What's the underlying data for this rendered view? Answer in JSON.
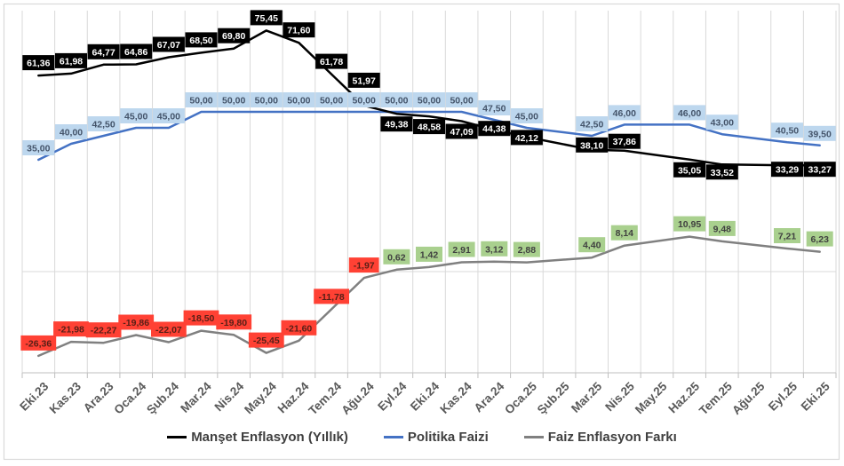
{
  "chart_data": {
    "type": "line",
    "title": "",
    "xlabel": "",
    "ylabel": "",
    "ylim": [
      -32,
      82
    ],
    "grid": {
      "vertical": true,
      "zero_line": true,
      "horizontal": false
    },
    "legend_position": "bottom",
    "decimal_separator": ",",
    "categories": [
      "Eki.23",
      "Kas.23",
      "Ara.23",
      "Oca.24",
      "Şub.24",
      "Mar.24",
      "Nis.24",
      "May.24",
      "Haz.24",
      "Tem.24",
      "Ağu.24",
      "Eyl.24",
      "Eki.24",
      "Kas.24",
      "Ara.24",
      "Oca.25",
      "Şub.25",
      "Mar.25",
      "Nis.25",
      "May.25",
      "Haz.25",
      "Tem.25",
      "Ağu.25",
      "Eyl.25",
      "Eki.25"
    ],
    "series": [
      {
        "name": "Manşet Enflasyon (Yıllık)",
        "color": "#000000",
        "label_bg": "#000000",
        "label_fg": "#FFFFFF",
        "values": [
          61.36,
          61.98,
          64.77,
          64.86,
          67.07,
          68.5,
          69.8,
          75.45,
          71.6,
          61.78,
          51.97,
          49.38,
          48.58,
          47.09,
          44.38,
          42.12,
          null,
          38.1,
          37.86,
          null,
          35.05,
          33.52,
          null,
          33.29,
          33.27
        ],
        "labels": [
          "61,36",
          "61,98",
          "64,77",
          "64,86",
          "67,07",
          "68,50",
          "69,80",
          "75,45",
          "71,60",
          "61,78",
          "51,97",
          "49,38",
          "48,58",
          "47,09",
          "44,38",
          "42,12",
          null,
          "38,10",
          "37,86",
          null,
          "35,05",
          "33,52",
          null,
          "33,29",
          "33,27"
        ]
      },
      {
        "name": "Politika Faizi",
        "color": "#4472C4",
        "label_bg": "#BDD7EE",
        "label_fg": "#44546A",
        "values": [
          35.0,
          40.0,
          42.5,
          45.0,
          45.0,
          50.0,
          50.0,
          50.0,
          50.0,
          50.0,
          50.0,
          50.0,
          50.0,
          50.0,
          47.5,
          45.0,
          null,
          42.5,
          46.0,
          null,
          46.0,
          43.0,
          null,
          40.5,
          39.5
        ],
        "labels": [
          "35,00",
          "40,00",
          "42,50",
          "45,00",
          "45,00",
          "50,00",
          "50,00",
          "50,00",
          "50,00",
          "50,00",
          "50,00",
          "50,00",
          "50,00",
          "50,00",
          "47,50",
          "45,00",
          null,
          "42,50",
          "46,00",
          null,
          "46,00",
          "43,00",
          null,
          "40,50",
          "39,50"
        ]
      },
      {
        "name": "Faiz Enflasyon Farkı",
        "color": "#808080",
        "label_bg_positive": "#A9D08E",
        "label_fg_positive": "#404040",
        "label_bg_negative": "#FF4134",
        "label_fg_negative": "#571F17",
        "values": [
          -26.36,
          -21.98,
          -22.27,
          -19.86,
          -22.07,
          -18.5,
          -19.8,
          -25.45,
          -21.6,
          -11.78,
          -1.97,
          0.62,
          1.42,
          2.91,
          3.12,
          2.88,
          null,
          4.4,
          8.14,
          null,
          10.95,
          9.48,
          null,
          7.21,
          6.23
        ],
        "labels": [
          "-26,36",
          "-21,98",
          "-22,27",
          "-19,86",
          "-22,07",
          "-18,50",
          "-19,80",
          "-25,45",
          "-21,60",
          "-11,78",
          "-1,97",
          "0,62",
          "1,42",
          "2,91",
          "3,12",
          "2,88",
          null,
          "4,40",
          "8,14",
          null,
          "10,95",
          "9,48",
          null,
          "7,21",
          "6,23"
        ]
      }
    ],
    "colors": {
      "grid": "#D9D9D9",
      "axis": "#BFBFBF",
      "axis_text": "#595959",
      "legend_text": "#404040",
      "border": "#D9D9D9"
    }
  }
}
